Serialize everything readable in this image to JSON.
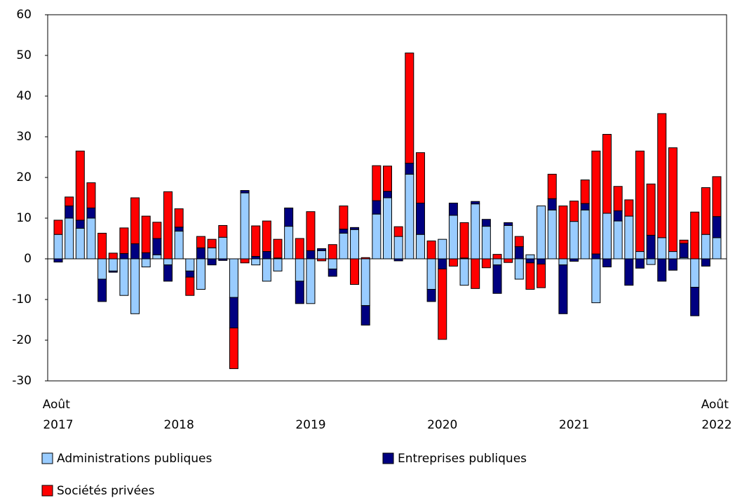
{
  "chart_data": {
    "type": "bar",
    "stacked": true,
    "categories": [
      "Août 2017",
      null,
      null,
      null,
      null,
      null,
      null,
      null,
      null,
      null,
      null,
      "2018",
      null,
      null,
      null,
      null,
      null,
      null,
      null,
      null,
      null,
      null,
      null,
      "2019",
      null,
      null,
      null,
      null,
      null,
      null,
      null,
      null,
      null,
      null,
      null,
      "2020",
      null,
      null,
      null,
      null,
      null,
      null,
      null,
      null,
      null,
      null,
      null,
      "2021",
      null,
      null,
      null,
      null,
      null,
      null,
      null,
      null,
      null,
      null,
      null,
      null,
      "Août 2022"
    ],
    "series": [
      {
        "name": "Administrations publiques",
        "color": "#99ccff",
        "values": [
          6,
          10,
          7.5,
          10,
          -5,
          -3,
          -9,
          -13.5,
          -2,
          1,
          -1.5,
          6.8,
          -3,
          -7.5,
          2.7,
          5.3,
          -9.5,
          16.2,
          -1.5,
          -5.5,
          -3,
          8,
          -5.5,
          -11,
          2,
          -2.5,
          6.3,
          7.2,
          -11.5,
          11,
          15,
          5.5,
          20.8,
          6,
          -7.5,
          4.8,
          10.7,
          -6.5,
          13.5,
          8,
          -1.5,
          8.2,
          -5,
          1,
          13,
          12,
          -1.5,
          9.2,
          12,
          -10.8,
          11.2,
          9.3,
          10.5,
          1.8,
          -1.4,
          5.2,
          1.8,
          0.3,
          -7,
          6,
          5.2
        ]
      },
      {
        "name": "Entreprises publiques",
        "color": "#000080",
        "values": [
          -0.8,
          3,
          2,
          2.5,
          -5.5,
          -0.3,
          1.3,
          3.7,
          1.5,
          4,
          -4,
          1,
          -1.5,
          2.7,
          -1.5,
          -0.4,
          -7.5,
          0.6,
          0.6,
          1.8,
          0.2,
          4.5,
          -5.5,
          2,
          0.5,
          -1.8,
          1,
          0.5,
          -4.8,
          3.3,
          1.6,
          -0.5,
          2.7,
          7.7,
          -3,
          -2.5,
          3,
          0.2,
          0.6,
          1.7,
          -7,
          0.7,
          3,
          -1,
          -1.3,
          2.8,
          -12,
          -0.6,
          1.6,
          1.2,
          -2,
          2.5,
          -6.5,
          -2.3,
          5.8,
          -5.5,
          -2.8,
          3.5,
          -7,
          -1.8,
          5.2
        ]
      },
      {
        "name": "Sociétés privées",
        "color": "#ff0000",
        "values": [
          3.5,
          2.2,
          17,
          6.2,
          6.3,
          1.4,
          6.3,
          11.3,
          9,
          4,
          16.5,
          4.5,
          -4.5,
          2.8,
          2.1,
          2.9,
          -10,
          -1,
          7.5,
          7.5,
          4.6,
          0,
          5,
          9.6,
          -0.5,
          3.5,
          5.7,
          -6.3,
          0.3,
          8.6,
          6.2,
          2.4,
          27.1,
          12.4,
          4.4,
          -17.3,
          -1.8,
          8.7,
          -7.3,
          -2.2,
          1.1,
          -0.9,
          2.5,
          -6.5,
          -5.8,
          6,
          13,
          5,
          5.8,
          25.3,
          19.4,
          6,
          4,
          24.7,
          12.6,
          30.5,
          25.5,
          0.8,
          11.5,
          11.5,
          9.8
        ]
      }
    ],
    "ylim": [
      -30,
      60
    ],
    "yticks": [
      -30,
      -20,
      -10,
      0,
      10,
      20,
      30,
      40,
      50,
      60
    ]
  }
}
